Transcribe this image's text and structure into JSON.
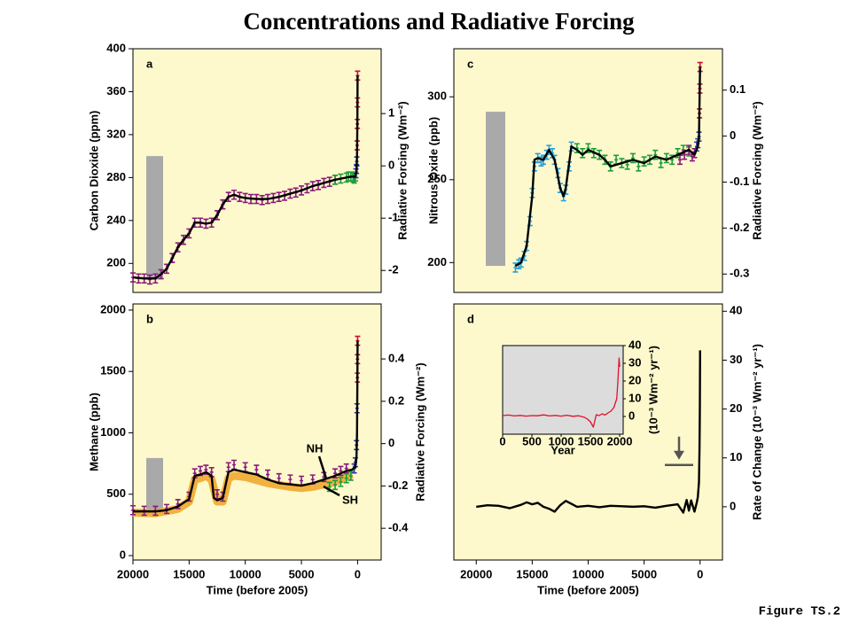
{
  "title": "Concentrations and Radiative Forcing",
  "figure_label": "Figure TS.2",
  "chart_data": [
    {
      "type": "line",
      "panel": "a",
      "ylabel": "Carbon Dioxide (ppm)",
      "y2label": "Radiative Forcing (Wm⁻²)",
      "xlim": [
        20000,
        -2100
      ],
      "ylim": [
        173,
        400
      ],
      "yticks": [
        200,
        240,
        280,
        320,
        360,
        400
      ],
      "y2lim": [
        -2.42,
        2.24
      ],
      "y2ticks": [
        -2,
        -1,
        0,
        1
      ],
      "range_bar": [
        185,
        300
      ],
      "series": [
        {
          "style": "markers",
          "color": "#8b1a7a",
          "x": [
            20000,
            19500,
            19000,
            18500,
            18000,
            17500,
            17000,
            16500,
            16000,
            15500,
            15000,
            14500,
            14000,
            13500,
            13000,
            12500,
            12000,
            11500,
            11000,
            10500,
            10000,
            9500,
            9000,
            8500,
            8000,
            7500,
            7000,
            6500,
            6000,
            5500,
            5000,
            4500,
            4000,
            3500,
            3000,
            2500,
            2000
          ],
          "values": [
            187,
            186,
            186,
            185,
            186,
            190,
            195,
            205,
            215,
            222,
            228,
            238,
            238,
            237,
            238,
            245,
            255,
            262,
            264,
            262,
            261,
            260,
            260,
            259,
            260,
            261,
            262,
            263,
            265,
            266,
            268,
            270,
            272,
            273,
            275,
            276,
            278
          ]
        },
        {
          "style": "markers",
          "color": "#1e9e3a",
          "x": [
            2000,
            1500,
            1000,
            800,
            600,
            400,
            300,
            200
          ],
          "values": [
            278,
            279,
            280,
            281,
            281,
            280,
            279,
            281
          ]
        },
        {
          "style": "markers",
          "color": "#2a3a9e",
          "x": [
            150,
            100,
            70
          ],
          "values": [
            284,
            288,
            295
          ]
        },
        {
          "style": "markers",
          "color": "#c8102e",
          "x": [
            40,
            20,
            10,
            0
          ],
          "values": [
            310,
            330,
            350,
            375
          ]
        },
        {
          "style": "line",
          "color": "#000000",
          "x": [
            20000,
            19000,
            18000,
            17500,
            17000,
            16500,
            16000,
            15500,
            15000,
            14500,
            14000,
            13500,
            13000,
            12500,
            12000,
            11500,
            11000,
            10500,
            10000,
            9000,
            8000,
            7000,
            6000,
            5000,
            4000,
            3000,
            2000,
            1000,
            500,
            200,
            100,
            50,
            20,
            0
          ],
          "values": [
            187,
            186,
            186,
            190,
            195,
            205,
            215,
            222,
            228,
            238,
            238,
            237,
            238,
            245,
            255,
            262,
            264,
            262,
            261,
            260,
            260,
            262,
            265,
            268,
            272,
            275,
            278,
            280,
            281,
            281,
            285,
            300,
            330,
            375
          ]
        }
      ]
    },
    {
      "type": "line",
      "panel": "b",
      "ylabel": "Methane (ppb)",
      "y2label": "Radiative Forcing (Wm⁻²)",
      "xlabel": "Time (before 2005)",
      "xlim": [
        20000,
        -2100
      ],
      "xticks": [
        20000,
        15000,
        10000,
        5000,
        0
      ],
      "ylim": [
        -36,
        2050
      ],
      "yticks": [
        0,
        500,
        1000,
        1500,
        2000
      ],
      "y2lim": [
        -0.55,
        0.66
      ],
      "y2ticks": [
        -0.4,
        -0.2,
        0,
        0.2,
        0.4
      ],
      "range_bar": [
        360,
        795
      ],
      "annotations": [
        "NH",
        "SH"
      ],
      "series": [
        {
          "style": "band",
          "color": "#f0a830",
          "x": [
            20000,
            18000,
            16000,
            15000,
            14500,
            14000,
            13500,
            13000,
            12500,
            12000,
            11500,
            11000,
            10000,
            8000,
            6000,
            5000,
            4000,
            3000,
            2000,
            1000,
            500
          ],
          "values": [
            350,
            345,
            380,
            440,
            620,
            630,
            650,
            620,
            440,
            440,
            630,
            650,
            640,
            590,
            560,
            550,
            560,
            580,
            600,
            640,
            660
          ]
        },
        {
          "style": "markers",
          "color": "#8b1a7a",
          "x": [
            20000,
            19000,
            18000,
            17000,
            16000,
            15000,
            14500,
            14000,
            13500,
            13000,
            12500,
            12000,
            11500,
            11000,
            10000,
            9000,
            8000,
            7000,
            6000,
            5000,
            4000,
            3000,
            2000,
            1500,
            1000
          ],
          "values": [
            370,
            365,
            365,
            380,
            420,
            480,
            670,
            690,
            700,
            680,
            500,
            480,
            720,
            740,
            720,
            700,
            660,
            630,
            620,
            610,
            620,
            640,
            670,
            690,
            710
          ]
        },
        {
          "style": "markers",
          "color": "#1e9e3a",
          "x": [
            2500,
            2000,
            1500,
            1000,
            600
          ],
          "values": [
            560,
            575,
            600,
            630,
            650
          ]
        },
        {
          "style": "markers",
          "color": "#2a3a9e",
          "x": [
            300,
            200,
            100,
            50
          ],
          "values": [
            710,
            760,
            900,
            1200
          ]
        },
        {
          "style": "markers",
          "color": "#c8102e",
          "x": [
            20,
            10,
            0
          ],
          "values": [
            1450,
            1600,
            1750
          ]
        },
        {
          "style": "line",
          "color": "#000000",
          "x": [
            20000,
            18000,
            17000,
            16000,
            15000,
            14500,
            14000,
            13500,
            13000,
            12800,
            12500,
            12000,
            11500,
            11000,
            10000,
            9000,
            8000,
            7000,
            6000,
            5000,
            4000,
            3000,
            2000,
            1000,
            500,
            200,
            100,
            50,
            20,
            0
          ],
          "values": [
            360,
            360,
            370,
            400,
            460,
            650,
            660,
            680,
            650,
            470,
            450,
            470,
            680,
            700,
            680,
            660,
            620,
            590,
            580,
            570,
            590,
            620,
            650,
            690,
            700,
            720,
            800,
            1000,
            1400,
            1750
          ]
        }
      ]
    },
    {
      "type": "line",
      "panel": "c",
      "ylabel": "Nitrous Oxide (ppb)",
      "y2label": "Radiative Forcing (Wm⁻²)",
      "xlim": [
        22000,
        -2000
      ],
      "ylim": [
        182,
        329
      ],
      "yticks": [
        200,
        250,
        300
      ],
      "y2lim": [
        -0.34,
        0.19
      ],
      "y2ticks": [
        -0.3,
        -0.2,
        -0.1,
        0,
        0.1
      ],
      "range_bar": [
        198,
        291
      ],
      "series": [
        {
          "style": "markers",
          "color": "#2aa0d8",
          "x": [
            16500,
            16200,
            16000,
            15700,
            15500,
            15200,
            15000,
            14800,
            14500,
            14200,
            14000,
            13700,
            13500,
            13200,
            13000,
            12700,
            12500,
            12200,
            12000,
            11700,
            11500
          ],
          "values": [
            197,
            199,
            200,
            204,
            210,
            225,
            242,
            258,
            263,
            261,
            262,
            265,
            268,
            266,
            262,
            254,
            245,
            240,
            244,
            258,
            270
          ]
        },
        {
          "style": "markers",
          "color": "#1e9e3a",
          "x": [
            11000,
            10500,
            10000,
            9500,
            9000,
            8500,
            8000,
            7500,
            7000,
            6500,
            6000,
            5500,
            5000,
            4500,
            4000,
            3500,
            3000,
            2500,
            2000,
            1500,
            1000
          ],
          "values": [
            269,
            266,
            269,
            266,
            265,
            262,
            258,
            262,
            260,
            259,
            263,
            258,
            261,
            262,
            265,
            260,
            263,
            262,
            266,
            268,
            267
          ]
        },
        {
          "style": "markers",
          "color": "#8b1a7a",
          "x": [
            1800,
            1400,
            1000,
            700,
            500
          ],
          "values": [
            262,
            265,
            268,
            264,
            266
          ]
        },
        {
          "style": "markers",
          "color": "#2a3a9e",
          "x": [
            300,
            200,
            100
          ],
          "values": [
            270,
            272,
            276
          ]
        },
        {
          "style": "markers",
          "color": "#c8102e",
          "x": [
            50,
            20,
            0
          ],
          "values": [
            290,
            305,
            318
          ]
        },
        {
          "style": "line",
          "color": "#000000",
          "x": [
            16500,
            16000,
            15500,
            15000,
            14800,
            14500,
            14000,
            13500,
            13000,
            12500,
            12200,
            12000,
            11500,
            11000,
            10500,
            10000,
            9000,
            8500,
            8000,
            7000,
            6000,
            5000,
            4000,
            3000,
            2000,
            1000,
            500,
            200,
            100,
            0
          ],
          "values": [
            198,
            200,
            210,
            240,
            262,
            263,
            262,
            268,
            262,
            245,
            240,
            245,
            270,
            268,
            265,
            268,
            265,
            262,
            258,
            260,
            262,
            260,
            264,
            262,
            265,
            268,
            265,
            270,
            275,
            318
          ]
        }
      ]
    },
    {
      "type": "line",
      "panel": "d",
      "ylabel": "Rate of Change (10⁻³ Wm⁻² yr⁻¹)",
      "xlabel": "Time (before 2005)",
      "yaxis": "right",
      "xlim": [
        22000,
        -2000
      ],
      "xticks": [
        20000,
        15000,
        10000,
        5000,
        0
      ],
      "ylim": [
        -10.9,
        41.5
      ],
      "yticks": [
        0,
        10,
        20,
        30,
        40
      ],
      "series": [
        {
          "style": "line",
          "color": "#000000",
          "x": [
            20000,
            19000,
            18000,
            17000,
            16000,
            15500,
            15000,
            14500,
            14000,
            13500,
            13000,
            12500,
            12000,
            11500,
            11000,
            10000,
            9000,
            8000,
            7000,
            6000,
            5000,
            4000,
            3000,
            2000,
            1500,
            1200,
            1000,
            800,
            500,
            300,
            200,
            100,
            50,
            20,
            0
          ],
          "values": [
            0,
            0.3,
            0.2,
            -0.3,
            0.4,
            0.9,
            0.5,
            0.8,
            0,
            -0.4,
            -1,
            0.3,
            1.2,
            0.6,
            0,
            0.2,
            -0.1,
            0.2,
            0.1,
            0,
            0.1,
            -0.2,
            0.2,
            0.5,
            -1.2,
            1.4,
            -0.8,
            1.3,
            -1,
            0.8,
            2,
            5,
            12,
            20,
            32
          ]
        }
      ]
    },
    {
      "type": "line",
      "inset": true,
      "ylabel": "(10⁻³ Wm⁻² yr⁻¹)",
      "xlabel": "Year",
      "yaxis": "right",
      "xlim": [
        0,
        2060
      ],
      "xticks": [
        0,
        500,
        1000,
        1500,
        2000
      ],
      "ylim": [
        -10,
        40
      ],
      "yticks": [
        0,
        10,
        20,
        30,
        40
      ],
      "series": [
        {
          "style": "line",
          "color": "#e0102a",
          "x": [
            0,
            100,
            200,
            300,
            400,
            500,
            600,
            700,
            800,
            900,
            1000,
            1100,
            1200,
            1300,
            1400,
            1450,
            1500,
            1550,
            1600,
            1650,
            1700,
            1750,
            1800,
            1850,
            1900,
            1950,
            1970,
            1990,
            2000
          ],
          "values": [
            0.5,
            0.8,
            0.3,
            0.6,
            0.2,
            0.5,
            0.4,
            0.9,
            0.3,
            0.6,
            0.2,
            0.7,
            0.1,
            0.4,
            -0.5,
            -1.5,
            -3,
            -6,
            1,
            0.5,
            1.5,
            0.8,
            2,
            3,
            5,
            10,
            20,
            33,
            28
          ]
        }
      ]
    }
  ]
}
